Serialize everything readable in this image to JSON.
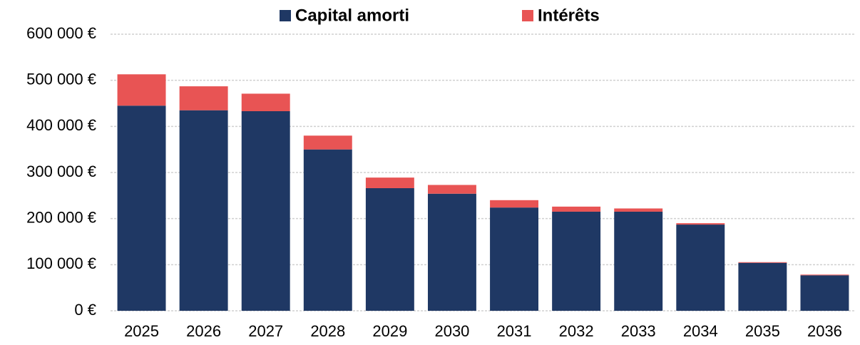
{
  "chart_data": {
    "type": "bar",
    "stacked": true,
    "categories": [
      "2025",
      "2026",
      "2027",
      "2028",
      "2029",
      "2030",
      "2031",
      "2032",
      "2033",
      "2034",
      "2035",
      "2036"
    ],
    "series": [
      {
        "name": "Capital amorti",
        "color": "#1f3864",
        "values": [
          445000,
          435000,
          433000,
          350000,
          266000,
          254000,
          224000,
          215000,
          215000,
          187000,
          104000,
          77000
        ]
      },
      {
        "name": "Intérêts",
        "color": "#e85454",
        "values": [
          68000,
          52000,
          38000,
          30000,
          23000,
          19000,
          16000,
          11000,
          7000,
          3000,
          1500,
          1500
        ]
      }
    ],
    "ylim": [
      0,
      600000
    ],
    "yticks": [
      {
        "value": 0,
        "label": "0 €"
      },
      {
        "value": 100000,
        "label": "100 000 €"
      },
      {
        "value": 200000,
        "label": "200 000 €"
      },
      {
        "value": 300000,
        "label": "300 000 €"
      },
      {
        "value": 400000,
        "label": "400 000 €"
      },
      {
        "value": 500000,
        "label": "500 000 €"
      },
      {
        "value": 600000,
        "label": "600 000 €"
      }
    ],
    "grid": true,
    "legend": "top"
  }
}
